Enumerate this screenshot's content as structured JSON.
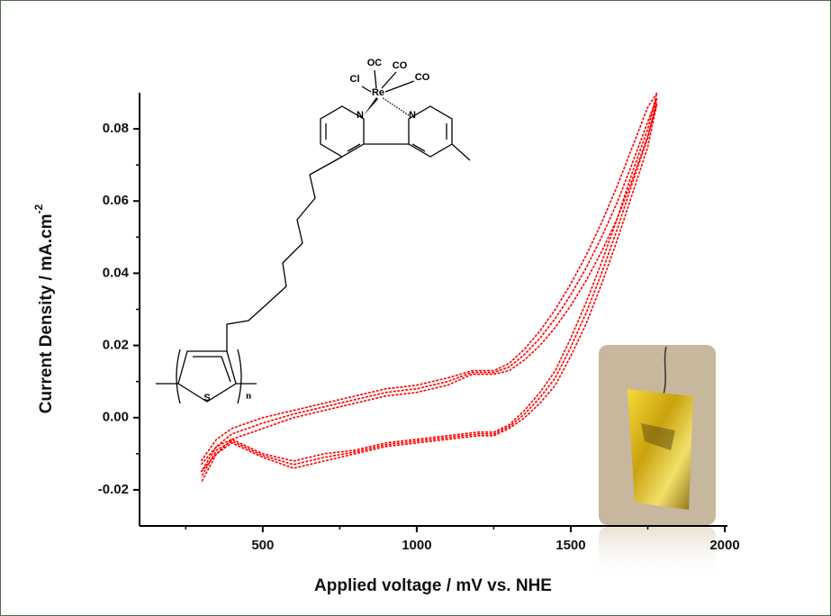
{
  "chart_data": {
    "type": "line",
    "xlabel": "Applied voltage / mV vs. NHE",
    "ylabel": "Current Density / mA.cm",
    "ylabel_exponent": "-2",
    "xlim": [
      100,
      2000
    ],
    "ylim": [
      -0.03,
      0.09
    ],
    "xticks": [
      500,
      1000,
      1500,
      2000
    ],
    "yticks": [
      {
        "value": -0.02,
        "label": "-0.02"
      },
      {
        "value": 0,
        "label": "0.00"
      },
      {
        "value": 0.02,
        "label": "0.02"
      },
      {
        "value": 0.04,
        "label": "0.04"
      },
      {
        "value": 0.06,
        "label": "0.06"
      },
      {
        "value": 0.08,
        "label": "0.08"
      }
    ],
    "xminor_ticks": [
      250,
      750,
      1250,
      1750
    ],
    "yminor_ticks": [
      -0.01,
      0.01,
      0.03,
      0.05,
      0.07
    ],
    "structure_labels": [
      "OC",
      "CO",
      "CO",
      "Cl",
      "Re",
      "N",
      "N",
      "S",
      "n"
    ],
    "x": [
      300,
      350,
      400,
      500,
      600,
      700,
      800,
      900,
      1000,
      1100,
      1180,
      1250,
      1300,
      1350,
      1400,
      1450,
      1500,
      1550,
      1600,
      1650,
      1700,
      1750,
      1780,
      1750,
      1700,
      1650,
      1600,
      1550,
      1500,
      1450,
      1400,
      1350,
      1300,
      1250,
      1200,
      1100,
      1000,
      900,
      800,
      700,
      600,
      500,
      400,
      350,
      300
    ],
    "series": [
      {
        "color": "#ff0000",
        "values": [
          -0.012,
          -0.006,
          -0.003,
          0.0,
          0.002,
          0.004,
          0.006,
          0.008,
          0.009,
          0.011,
          0.013,
          0.013,
          0.015,
          0.019,
          0.024,
          0.03,
          0.037,
          0.045,
          0.054,
          0.064,
          0.075,
          0.086,
          0.09,
          0.08,
          0.068,
          0.055,
          0.043,
          0.032,
          0.022,
          0.013,
          0.007,
          0.002,
          -0.002,
          -0.004,
          -0.004,
          -0.005,
          -0.006,
          -0.007,
          -0.009,
          -0.01,
          -0.012,
          -0.01,
          -0.006,
          -0.008,
          -0.015
        ]
      },
      {
        "color": "#ff0000",
        "values": [
          -0.013,
          -0.008,
          -0.0045,
          -0.0015,
          0.001,
          0.003,
          0.005,
          0.007,
          0.008,
          0.01,
          0.0125,
          0.0125,
          0.014,
          0.0175,
          0.022,
          0.0275,
          0.034,
          0.0415,
          0.05,
          0.0595,
          0.0705,
          0.082,
          0.0885,
          0.0775,
          0.065,
          0.052,
          0.04,
          0.029,
          0.0195,
          0.011,
          0.0055,
          0.001,
          -0.0025,
          -0.0045,
          -0.0045,
          -0.0055,
          -0.0065,
          -0.0075,
          -0.0095,
          -0.011,
          -0.013,
          -0.0105,
          -0.0065,
          -0.009,
          -0.0165
        ]
      },
      {
        "color": "#ff0000",
        "values": [
          -0.015,
          -0.01,
          -0.006,
          -0.003,
          0.0,
          0.002,
          0.004,
          0.006,
          0.007,
          0.009,
          0.012,
          0.012,
          0.013,
          0.016,
          0.02,
          0.025,
          0.031,
          0.038,
          0.046,
          0.055,
          0.066,
          0.078,
          0.087,
          0.075,
          0.062,
          0.049,
          0.037,
          0.026,
          0.017,
          0.009,
          0.004,
          0.0,
          -0.003,
          -0.005,
          -0.005,
          -0.006,
          -0.007,
          -0.008,
          -0.01,
          -0.012,
          -0.014,
          -0.011,
          -0.007,
          -0.01,
          -0.018
        ]
      }
    ]
  }
}
